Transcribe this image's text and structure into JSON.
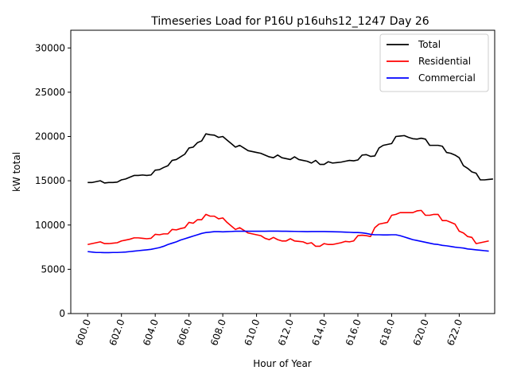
{
  "chart_data": {
    "type": "line",
    "title": "Timeseries Load for P16U p16uhs12_1247  Day 26",
    "xlabel": "Hour of Year",
    "ylabel": "kW total",
    "xlim": [
      599.0,
      624.1
    ],
    "ylim": [
      0,
      32000
    ],
    "xticks": [
      600,
      602,
      604,
      606,
      608,
      610,
      612,
      614,
      616,
      618,
      620,
      622
    ],
    "xtick_labels": [
      "600.0",
      "602.0",
      "604.0",
      "606.0",
      "608.0",
      "610.0",
      "612.0",
      "614.0",
      "616.0",
      "618.0",
      "620.0",
      "622.0"
    ],
    "yticks": [
      0,
      5000,
      10000,
      15000,
      20000,
      25000,
      30000
    ],
    "ytick_labels": [
      "0",
      "5000",
      "10000",
      "15000",
      "20000",
      "25000",
      "30000"
    ],
    "legend_position": "top-right",
    "x_start": 600.0,
    "x_step": 0.25,
    "series": [
      {
        "name": "Total",
        "color": "#000000",
        "values": [
          14800,
          14800,
          14900,
          15000,
          14750,
          14800,
          14800,
          14850,
          15100,
          15200,
          15400,
          15600,
          15600,
          15650,
          15600,
          15650,
          16200,
          16250,
          16500,
          16700,
          17300,
          17400,
          17700,
          18000,
          18700,
          18800,
          19300,
          19500,
          20300,
          20200,
          20150,
          19900,
          20000,
          19600,
          19200,
          18800,
          19000,
          18700,
          18400,
          18300,
          18200,
          18100,
          17900,
          17700,
          17600,
          17900,
          17600,
          17500,
          17400,
          17700,
          17400,
          17300,
          17200,
          17000,
          17300,
          16850,
          16850,
          17150,
          17000,
          17050,
          17100,
          17200,
          17300,
          17250,
          17350,
          17900,
          17950,
          17750,
          17800,
          18700,
          19000,
          19100,
          19200,
          20000,
          20050,
          20100,
          19900,
          19750,
          19700,
          19800,
          19700,
          19000,
          19000,
          19000,
          18900,
          18200,
          18100,
          17900,
          17600,
          16700,
          16400,
          16000,
          15850,
          15100,
          15100,
          15150,
          15200
        ]
      },
      {
        "name": "Residential",
        "color": "#ff0000",
        "values": [
          7800,
          7900,
          8000,
          8100,
          7900,
          7900,
          7950,
          8000,
          8200,
          8300,
          8400,
          8550,
          8550,
          8500,
          8450,
          8500,
          8950,
          8900,
          9000,
          9000,
          9500,
          9450,
          9600,
          9700,
          10300,
          10200,
          10600,
          10600,
          11200,
          11000,
          11000,
          10700,
          10800,
          10300,
          9900,
          9500,
          9700,
          9400,
          9100,
          9000,
          8900,
          8800,
          8500,
          8350,
          8600,
          8350,
          8200,
          8200,
          8450,
          8200,
          8150,
          8100,
          7900,
          8000,
          7600,
          7600,
          7900,
          7800,
          7800,
          7900,
          8000,
          8150,
          8100,
          8200,
          8800,
          8850,
          8800,
          8700,
          9700,
          10100,
          10200,
          10300,
          11100,
          11200,
          11400,
          11400,
          11400,
          11400,
          11600,
          11650,
          11100,
          11100,
          11200,
          11200,
          10500,
          10500,
          10300,
          10100,
          9300,
          9100,
          8700,
          8600,
          7900,
          8000,
          8100,
          8200
        ]
      },
      {
        "name": "Commercial",
        "color": "#0000ff",
        "values": [
          7000,
          6950,
          6900,
          6900,
          6880,
          6880,
          6900,
          6900,
          6920,
          6950,
          7000,
          7050,
          7100,
          7150,
          7200,
          7250,
          7350,
          7450,
          7600,
          7800,
          7950,
          8100,
          8300,
          8450,
          8600,
          8750,
          8900,
          9050,
          9150,
          9200,
          9250,
          9250,
          9230,
          9250,
          9270,
          9300,
          9300,
          9300,
          9300,
          9300,
          9300,
          9300,
          9300,
          9310,
          9310,
          9310,
          9300,
          9300,
          9290,
          9280,
          9270,
          9260,
          9250,
          9260,
          9260,
          9260,
          9260,
          9250,
          9240,
          9230,
          9220,
          9200,
          9180,
          9150,
          9150,
          9120,
          9050,
          8950,
          8900,
          8900,
          8880,
          8880,
          8900,
          8900,
          8800,
          8650,
          8500,
          8350,
          8250,
          8150,
          8050,
          7950,
          7850,
          7800,
          7700,
          7650,
          7580,
          7500,
          7450,
          7400,
          7300,
          7250,
          7200,
          7150,
          7100,
          7050
        ]
      }
    ]
  }
}
